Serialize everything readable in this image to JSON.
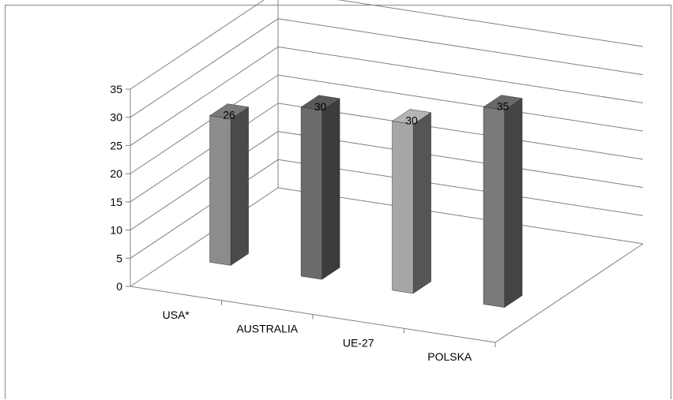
{
  "chart_data": {
    "type": "bar",
    "title": "",
    "xlabel": "",
    "ylabel": "",
    "categories": [
      "USA*",
      "AUSTRALIA",
      "UE-27",
      "POLSKA"
    ],
    "values": [
      26,
      30,
      30,
      35
    ],
    "ylim": [
      0,
      35
    ],
    "yticks": [
      0,
      5,
      10,
      15,
      20,
      25,
      30,
      35
    ],
    "ytick_labels": [
      "0",
      "5",
      "10",
      "15",
      "20",
      "25",
      "30",
      "35"
    ],
    "grid": true,
    "legend": "none",
    "style": "3d-columns",
    "colors": {
      "bars_front": [
        "#8c8c8c",
        "#6b6b6b",
        "#a6a6a6",
        "#7a7a7a"
      ],
      "bars_side": [
        "#4a4a4a",
        "#3c3c3c",
        "#555555",
        "#444444"
      ],
      "bars_top": [
        "#7a7a7a",
        "#5a5a5a",
        "#b5b5b5",
        "#696969"
      ],
      "gridline": "#808080"
    }
  }
}
